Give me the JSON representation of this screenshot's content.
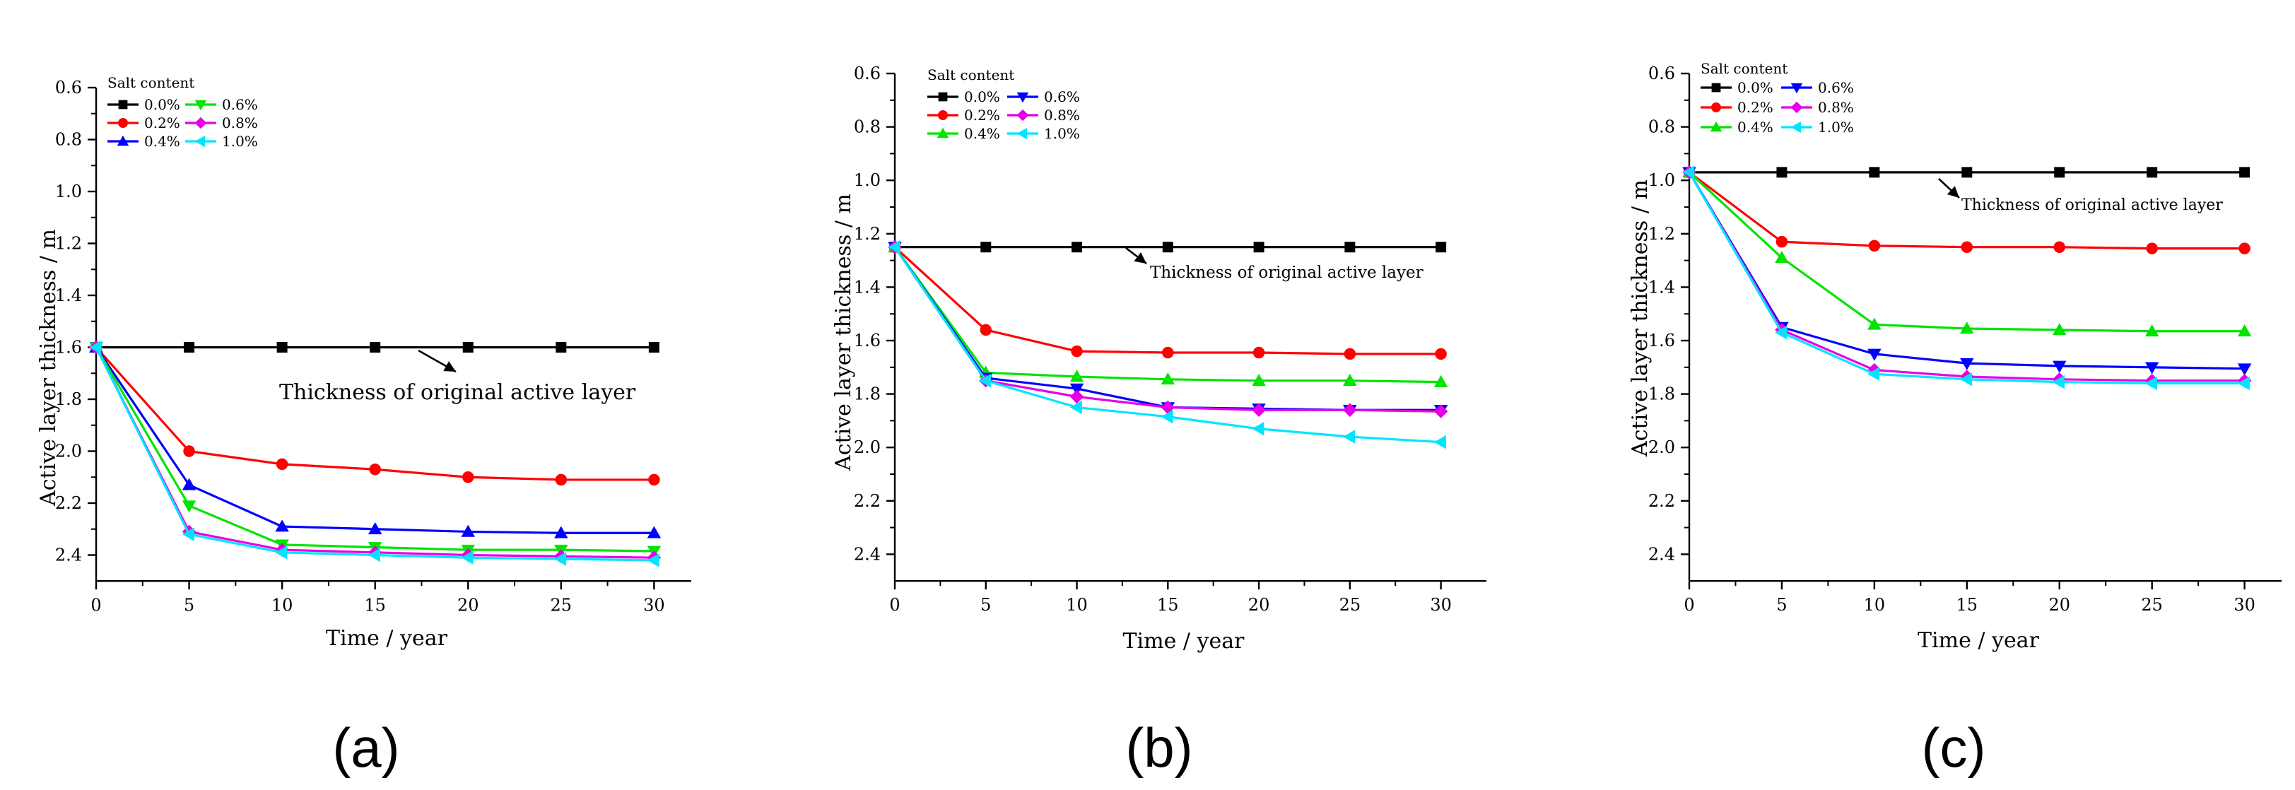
{
  "panels": [
    {
      "label": "(a)",
      "chart_data": {
        "type": "line",
        "xlabel": "Time / year",
        "ylabel": "Active layer thickness / m",
        "xlim": [
          0,
          32
        ],
        "ylim": [
          0.6,
          2.5
        ],
        "y_inverted": true,
        "x_ticks": [
          0,
          5,
          10,
          15,
          20,
          25,
          30
        ],
        "x_tick_labels": [
          "0",
          "5",
          "10",
          "15",
          "20",
          "25",
          "30"
        ],
        "y_ticks": [
          0.6,
          0.8,
          1.0,
          1.2,
          1.4,
          1.6,
          1.8,
          2.0,
          2.2,
          2.4
        ],
        "y_tick_labels": [
          "0.6",
          "0.8",
          "1.0",
          "1.2",
          "1.4",
          "1.6",
          "1.8",
          "2.0",
          "2.2",
          "2.4"
        ],
        "legend_title": "Salt content",
        "legend_position": "top-left",
        "annotation": "Thickness of original active layer",
        "x": [
          0,
          5,
          10,
          15,
          20,
          25,
          30
        ],
        "series": [
          {
            "name": "0.0%",
            "color": "#000000",
            "marker": "square",
            "values": [
              1.6,
              1.6,
              1.6,
              1.6,
              1.6,
              1.6,
              1.6
            ]
          },
          {
            "name": "0.2%",
            "color": "#ff0000",
            "marker": "circle",
            "values": [
              1.6,
              2.0,
              2.05,
              2.07,
              2.1,
              2.11,
              2.11
            ]
          },
          {
            "name": "0.4%",
            "color": "#0000ff",
            "marker": "triangle-up",
            "values": [
              1.6,
              2.13,
              2.29,
              2.3,
              2.31,
              2.315,
              2.315
            ]
          },
          {
            "name": "0.6%",
            "color": "#00e400",
            "marker": "triangle-down",
            "values": [
              1.6,
              2.21,
              2.36,
              2.37,
              2.38,
              2.38,
              2.385
            ]
          },
          {
            "name": "0.8%",
            "color": "#e600e6",
            "marker": "diamond",
            "values": [
              1.6,
              2.31,
              2.38,
              2.39,
              2.4,
              2.405,
              2.41
            ]
          },
          {
            "name": "1.0%",
            "color": "#00e5ff",
            "marker": "triangle-left",
            "values": [
              1.6,
              2.32,
              2.39,
              2.4,
              2.41,
              2.415,
              2.42
            ]
          }
        ]
      }
    },
    {
      "label": "(b)",
      "chart_data": {
        "type": "line",
        "xlabel": "Time / year",
        "ylabel": "Active layer thickness / m",
        "xlim": [
          0,
          32.5
        ],
        "ylim": [
          0.6,
          2.5
        ],
        "y_inverted": true,
        "x_ticks": [
          0,
          5,
          10,
          15,
          20,
          25,
          30
        ],
        "x_tick_labels": [
          "0",
          "5",
          "10",
          "15",
          "20",
          "25",
          "30"
        ],
        "y_ticks": [
          0.6,
          0.8,
          1.0,
          1.2,
          1.4,
          1.6,
          1.8,
          2.0,
          2.2,
          2.4
        ],
        "y_tick_labels": [
          "0.6",
          "0.8",
          "1.0",
          "1.2",
          "1.4",
          "1.6",
          "1.8",
          "2.0",
          "2.2",
          "2.4"
        ],
        "legend_title": "Salt content",
        "legend_position": "top-left",
        "annotation": "Thickness of original active layer",
        "x": [
          0,
          5,
          10,
          15,
          20,
          25,
          30
        ],
        "series": [
          {
            "name": "0.0%",
            "color": "#000000",
            "marker": "square",
            "values": [
              1.25,
              1.25,
              1.25,
              1.25,
              1.25,
              1.25,
              1.25
            ]
          },
          {
            "name": "0.2%",
            "color": "#ff0000",
            "marker": "circle",
            "values": [
              1.25,
              1.56,
              1.64,
              1.645,
              1.645,
              1.65,
              1.65
            ]
          },
          {
            "name": "0.4%",
            "color": "#00e400",
            "marker": "triangle-up",
            "values": [
              1.25,
              1.72,
              1.735,
              1.745,
              1.75,
              1.75,
              1.755
            ]
          },
          {
            "name": "0.6%",
            "color": "#0000ff",
            "marker": "triangle-down",
            "values": [
              1.25,
              1.74,
              1.78,
              1.85,
              1.855,
              1.86,
              1.86
            ]
          },
          {
            "name": "0.8%",
            "color": "#e600e6",
            "marker": "diamond",
            "values": [
              1.25,
              1.75,
              1.81,
              1.85,
              1.86,
              1.86,
              1.865
            ]
          },
          {
            "name": "1.0%",
            "color": "#00e5ff",
            "marker": "triangle-left",
            "values": [
              1.25,
              1.75,
              1.85,
              1.885,
              1.93,
              1.96,
              1.98
            ]
          }
        ]
      }
    },
    {
      "label": "(c)",
      "chart_data": {
        "type": "line",
        "xlabel": "Time / year",
        "ylabel": "Active layer thickness / m",
        "xlim": [
          0,
          32
        ],
        "ylim": [
          0.6,
          2.5
        ],
        "y_inverted": true,
        "x_ticks": [
          0,
          5,
          10,
          15,
          20,
          25,
          30
        ],
        "x_tick_labels": [
          "0",
          "5",
          "10",
          "15",
          "20",
          "25",
          "30"
        ],
        "y_ticks": [
          0.6,
          0.8,
          1.0,
          1.2,
          1.4,
          1.6,
          1.8,
          2.0,
          2.2,
          2.4
        ],
        "y_tick_labels": [
          "0.6",
          "0.8",
          "1.0",
          "1.2",
          "1.4",
          "1.6",
          "1.8",
          "2.0",
          "2.2",
          "2.4"
        ],
        "legend_title": "Salt content",
        "legend_position": "top-left",
        "annotation": "Thickness of original active layer",
        "x": [
          0,
          5,
          10,
          15,
          20,
          25,
          30
        ],
        "series": [
          {
            "name": "0.0%",
            "color": "#000000",
            "marker": "square",
            "values": [
              0.97,
              0.97,
              0.97,
              0.97,
              0.97,
              0.97,
              0.97
            ]
          },
          {
            "name": "0.2%",
            "color": "#ff0000",
            "marker": "circle",
            "values": [
              0.97,
              1.23,
              1.245,
              1.25,
              1.25,
              1.255,
              1.255
            ]
          },
          {
            "name": "0.4%",
            "color": "#00e400",
            "marker": "triangle-up",
            "values": [
              0.97,
              1.29,
              1.54,
              1.555,
              1.56,
              1.565,
              1.565
            ]
          },
          {
            "name": "0.6%",
            "color": "#0000ff",
            "marker": "triangle-down",
            "values": [
              0.97,
              1.55,
              1.65,
              1.685,
              1.695,
              1.7,
              1.705
            ]
          },
          {
            "name": "0.8%",
            "color": "#e600e6",
            "marker": "diamond",
            "values": [
              0.97,
              1.56,
              1.71,
              1.735,
              1.745,
              1.75,
              1.75
            ]
          },
          {
            "name": "1.0%",
            "color": "#00e5ff",
            "marker": "triangle-left",
            "values": [
              0.97,
              1.57,
              1.725,
              1.745,
              1.755,
              1.76,
              1.76
            ]
          }
        ]
      }
    }
  ]
}
